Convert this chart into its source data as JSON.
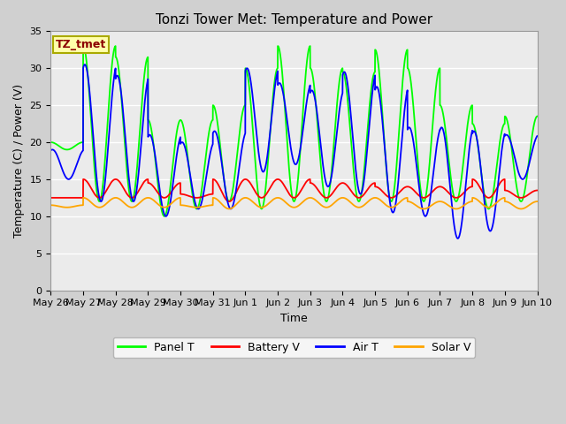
{
  "title": "Tonzi Tower Met: Temperature and Power",
  "xlabel": "Time",
  "ylabel": "Temperature (C) / Power (V)",
  "ylim": [
    0,
    35
  ],
  "yticks": [
    0,
    5,
    10,
    15,
    20,
    25,
    30,
    35
  ],
  "x_labels": [
    "May 26",
    "May 27",
    "May 28",
    "May 29",
    "May 30",
    "May 31",
    "Jun 1",
    "Jun 2",
    "Jun 3",
    "Jun 4",
    "Jun 5",
    "Jun 6",
    "Jun 7",
    "Jun 8",
    "Jun 9",
    "Jun 10"
  ],
  "panel_T_color": "#00FF00",
  "battery_V_color": "#FF0000",
  "air_T_color": "#0000FF",
  "solar_V_color": "#FFA500",
  "plot_bg_color": "#EBEBEB",
  "fig_bg_color": "#D0D0D0",
  "annotation_text": "TZ_tmet",
  "annotation_color": "#8B0000",
  "annotation_bg": "#FFFFAA",
  "annotation_edge": "#AAAA00",
  "legend_labels": [
    "Panel T",
    "Battery V",
    "Air T",
    "Solar V"
  ],
  "title_fontsize": 11,
  "axis_fontsize": 9,
  "tick_fontsize": 8,
  "line_width": 1.3,
  "panel_T_peaks": [
    20,
    33,
    31.5,
    23,
    23,
    25,
    30,
    33,
    30,
    29.5,
    32.5,
    30,
    25,
    22.5,
    23.5,
    18.5
  ],
  "panel_T_mins": [
    19,
    12,
    12,
    10,
    11,
    12,
    11,
    12,
    12,
    12,
    12,
    12,
    12,
    11,
    12,
    15
  ],
  "air_T_peaks": [
    19,
    30.5,
    29,
    21,
    20,
    21.5,
    30,
    28,
    27,
    29.5,
    27.5,
    22,
    22,
    21.5,
    21,
    17
  ],
  "air_T_mins": [
    15,
    12,
    12,
    10,
    11,
    11,
    16,
    17,
    14,
    13,
    10.5,
    10,
    7,
    8,
    15,
    15
  ],
  "battery_V_peaks": [
    12.5,
    15,
    15,
    14.5,
    13,
    15,
    15,
    15,
    14.5,
    14.5,
    14,
    14,
    14,
    15,
    13.5,
    13
  ],
  "battery_V_mins": [
    12.5,
    12.5,
    12.5,
    12.5,
    12.5,
    12,
    12.5,
    12.5,
    12.5,
    12.5,
    12.5,
    12.5,
    12.5,
    12.5,
    12.5,
    12.5
  ],
  "solar_V_peaks": [
    11.5,
    12.5,
    12.5,
    12.5,
    11.5,
    12.5,
    12.5,
    12.5,
    12.5,
    12.5,
    12.5,
    12,
    12,
    12.5,
    12,
    11.5
  ],
  "solar_V_mins": [
    11.2,
    11.2,
    11.2,
    11.2,
    11.2,
    11,
    11.2,
    11.2,
    11.2,
    11.2,
    11.2,
    11,
    11,
    11.2,
    11,
    11.2
  ]
}
